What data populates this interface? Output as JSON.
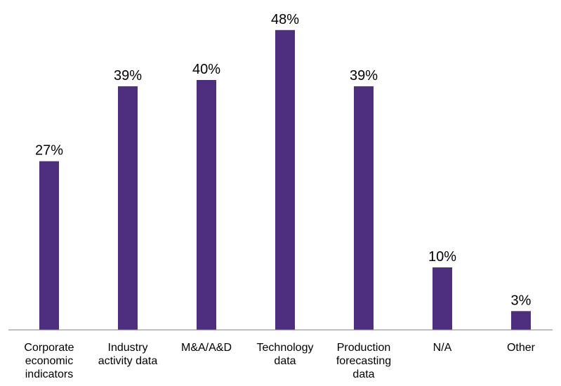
{
  "chart_data": {
    "type": "bar",
    "categories": [
      "Corporate economic indicators",
      "Industry activity data",
      "M&A/A&D",
      "Technology data",
      "Production forecasting data",
      "N/A",
      "Other"
    ],
    "category_lines": [
      [
        "Corporate",
        "economic",
        "indicators"
      ],
      [
        "Industry",
        "activity data"
      ],
      [
        "M&A/A&D"
      ],
      [
        "Technology",
        "data"
      ],
      [
        "Production",
        "forecasting",
        "data"
      ],
      [
        "N/A"
      ],
      [
        "Other"
      ]
    ],
    "values": [
      27,
      39,
      40,
      48,
      39,
      10,
      3
    ],
    "data_labels": [
      "27%",
      "39%",
      "40%",
      "48%",
      "39%",
      "10%",
      "3%"
    ],
    "title": "",
    "xlabel": "",
    "ylabel": "",
    "ylim": [
      0,
      50
    ],
    "unit": "%",
    "grid": false,
    "legend": "none",
    "bar_color": "#4e2f7f",
    "axis_color": "#7f7f7f"
  }
}
